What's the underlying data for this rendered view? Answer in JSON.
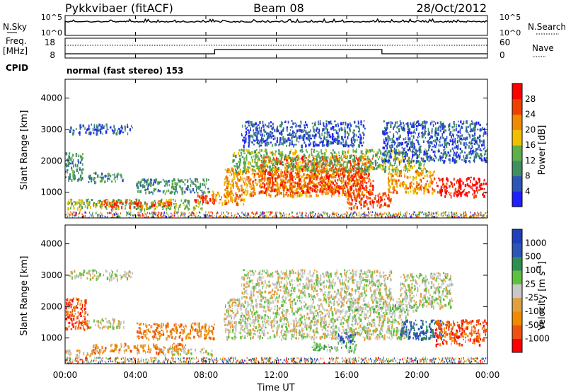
{
  "header": {
    "title": "Pykkvibaer (fitACF)",
    "beam": "Beam 08",
    "date": "28/Oct/2012"
  },
  "status_panels": {
    "nsky_label": "N.Sky",
    "nsky_ticks": [
      "10^5",
      "10^0"
    ],
    "nsearch_label": "N.Search",
    "nsearch_ticks": [
      "10^5",
      "10^0"
    ],
    "freq_label": "Freq.",
    "freq_unit": "[MHz]",
    "freq_ticks": [
      "18",
      "8"
    ],
    "nave_label": "Nave",
    "nave_ticks": [
      "60",
      "0"
    ],
    "cpid_label": "CPID",
    "cpid_text": "normal (fast stereo) 153"
  },
  "x_axis": {
    "label": "Time UT",
    "ticks": [
      "00:00",
      "04:00",
      "08:00",
      "12:00",
      "16:00",
      "20:00",
      "00:00"
    ]
  },
  "chart_data": [
    {
      "type": "heatmap",
      "name": "power",
      "ylabel": "Slant Range [km]",
      "yticks": [
        "1000",
        "2000",
        "3000",
        "4000"
      ],
      "ylim": [
        180,
        4600
      ],
      "xlim_hours": [
        0,
        24
      ],
      "colorbar_label": "Power [dB]",
      "colorbar_ticks": [
        "4",
        "8",
        "12",
        "16",
        "20",
        "24",
        "28"
      ],
      "colors": [
        "#1f1fff",
        "#2b55b7",
        "#3f8f63",
        "#5fb04a",
        "#f0c000",
        "#f08a00",
        "#f04000",
        "#ff0000"
      ],
      "blobs": [
        {
          "t0": 0.2,
          "t1": 3.8,
          "r0": 2900,
          "r1": 3200,
          "lvl": 1
        },
        {
          "t0": 0.0,
          "t1": 1.0,
          "r0": 1400,
          "r1": 2300,
          "lvl": 2
        },
        {
          "t0": 1.3,
          "t1": 3.3,
          "r0": 1350,
          "r1": 1650,
          "lvl": 2
        },
        {
          "t0": 0.0,
          "t1": 7.8,
          "r0": 480,
          "r1": 800,
          "lvl": 3
        },
        {
          "t0": 2.0,
          "t1": 6.0,
          "r0": 560,
          "r1": 760,
          "lvl": 6
        },
        {
          "t0": 4.0,
          "t1": 8.2,
          "r0": 1000,
          "r1": 1450,
          "lvl": 2
        },
        {
          "t0": 7.3,
          "t1": 8.5,
          "r0": 700,
          "r1": 950,
          "lvl": 6
        },
        {
          "t0": 8.3,
          "t1": 10.2,
          "r0": 650,
          "r1": 1050,
          "lvl": 5
        },
        {
          "t0": 9.0,
          "t1": 17.0,
          "r0": 900,
          "r1": 1800,
          "lvl": 5
        },
        {
          "t0": 11.0,
          "t1": 17.5,
          "r0": 1000,
          "r1": 2200,
          "lvl": 6
        },
        {
          "t0": 9.5,
          "t1": 20.5,
          "r0": 1700,
          "r1": 2400,
          "lvl": 3
        },
        {
          "t0": 16.0,
          "t1": 18.5,
          "r0": 500,
          "r1": 1000,
          "lvl": 6
        },
        {
          "t0": 18.3,
          "t1": 21.0,
          "r0": 1000,
          "r1": 1700,
          "lvl": 5
        },
        {
          "t0": 21.0,
          "t1": 23.9,
          "r0": 900,
          "r1": 1500,
          "lvl": 7
        },
        {
          "t0": 18.0,
          "t1": 24.0,
          "r0": 2000,
          "r1": 3300,
          "lvl": 1
        },
        {
          "t0": 10.0,
          "t1": 17.0,
          "r0": 2500,
          "r1": 3300,
          "lvl": 1
        }
      ]
    },
    {
      "type": "heatmap",
      "name": "velocity",
      "ylabel": "Slant Range [km]",
      "yticks": [
        "1000",
        "2000",
        "3000",
        "4000"
      ],
      "ylim": [
        180,
        4600
      ],
      "xlim_hours": [
        0,
        24
      ],
      "colorbar_label": "Velocity [m s",
      "colorbar_label_sup": "-1",
      "colorbar_label_end": "]",
      "colorbar_ticks": [
        "-1000",
        "-500",
        "-100",
        "-25",
        "25",
        "100",
        "500",
        "1000"
      ],
      "colors": [
        "#ff0000",
        "#f05010",
        "#f08a00",
        "#e0a040",
        "#c8c8c8",
        "#5fc040",
        "#2f8f50",
        "#2b55b7",
        "#1f3fbf"
      ],
      "blobs": [
        {
          "t0": 0.2,
          "t1": 3.8,
          "r0": 2900,
          "r1": 3200,
          "lvl": 4
        },
        {
          "t0": 0.0,
          "t1": 1.3,
          "r0": 1300,
          "r1": 2300,
          "lvl": 1
        },
        {
          "t0": 1.3,
          "t1": 3.3,
          "r0": 1350,
          "r1": 1650,
          "lvl": 4
        },
        {
          "t0": 4.0,
          "t1": 8.5,
          "r0": 1000,
          "r1": 1500,
          "lvl": 2
        },
        {
          "t0": 1.5,
          "t1": 7.0,
          "r0": 550,
          "r1": 850,
          "lvl": 2
        },
        {
          "t0": 0.0,
          "t1": 2.0,
          "r0": 450,
          "r1": 650,
          "lvl": 3
        },
        {
          "t0": 5.5,
          "t1": 8.3,
          "r0": 500,
          "r1": 700,
          "lvl": 4
        },
        {
          "t0": 9.0,
          "t1": 19.5,
          "r0": 1000,
          "r1": 2300,
          "lvl": 4
        },
        {
          "t0": 10.0,
          "t1": 18.5,
          "r0": 2300,
          "r1": 3200,
          "lvl": 4
        },
        {
          "t0": 14.0,
          "t1": 16.5,
          "r0": 600,
          "r1": 900,
          "lvl": 5
        },
        {
          "t0": 15.5,
          "t1": 16.5,
          "r0": 900,
          "r1": 1200,
          "lvl": 7
        },
        {
          "t0": 19.0,
          "t1": 21.5,
          "r0": 1000,
          "r1": 1600,
          "lvl": 7
        },
        {
          "t0": 21.0,
          "t1": 23.9,
          "r0": 800,
          "r1": 1600,
          "lvl": 1
        },
        {
          "t0": 16.0,
          "t1": 20.0,
          "r0": 1900,
          "r1": 2100,
          "lvl": 5
        },
        {
          "t0": 19.0,
          "t1": 22.0,
          "r0": 2000,
          "r1": 3100,
          "lvl": 4
        }
      ]
    }
  ]
}
